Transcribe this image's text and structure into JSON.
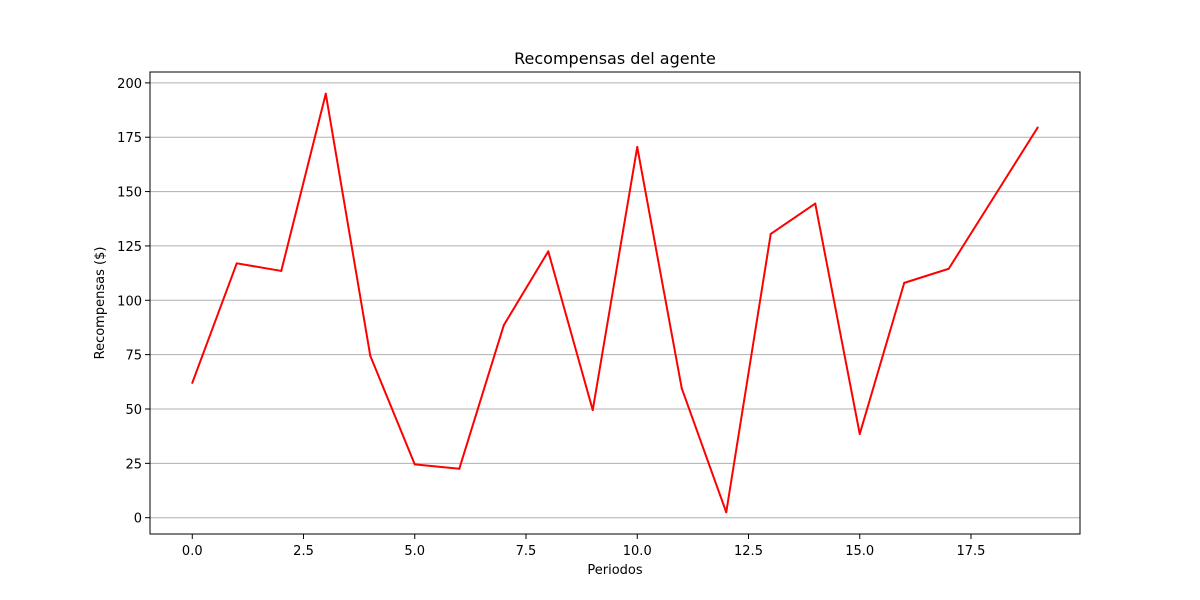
{
  "chart_data": {
    "type": "line",
    "title": "Recompensas del agente",
    "xlabel": "Periodos",
    "ylabel": "Recompensas ($)",
    "xlim": [
      -0.95,
      19.95
    ],
    "ylim": [
      -7.5,
      205
    ],
    "xticks": [
      0.0,
      2.5,
      5.0,
      7.5,
      10.0,
      12.5,
      15.0,
      17.5
    ],
    "xtick_labels": [
      "0.0",
      "2.5",
      "5.0",
      "7.5",
      "10.0",
      "12.5",
      "15.0",
      "17.5"
    ],
    "yticks": [
      0,
      25,
      50,
      75,
      100,
      125,
      150,
      175,
      200
    ],
    "ytick_labels": [
      "0",
      "25",
      "50",
      "75",
      "100",
      "125",
      "150",
      "175",
      "200"
    ],
    "grid": "horizontal",
    "series": [
      {
        "color": "#ff0000",
        "x": [
          0,
          1,
          2,
          3,
          4,
          5,
          6,
          7,
          8,
          9,
          10,
          11,
          12,
          13,
          14,
          15,
          16,
          17,
          18,
          19
        ],
        "values": [
          62,
          117,
          113.5,
          195,
          74.5,
          24.5,
          22.5,
          88.5,
          122.5,
          49.5,
          170.5,
          59.5,
          2.5,
          130.5,
          144.5,
          38.5,
          108,
          114.5,
          147,
          179.5
        ]
      }
    ]
  }
}
